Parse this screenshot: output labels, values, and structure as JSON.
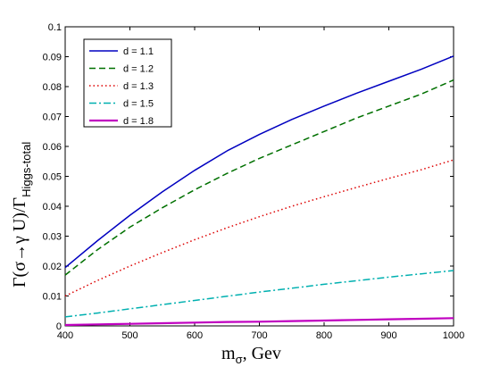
{
  "chart_data": {
    "type": "line",
    "xlabel": "m",
    "xlabel_sub": "σ",
    "xlabel_suffix": ", Gev",
    "ylabel_main": "Γ(σ→γ U)/Γ",
    "ylabel_sub": "Higgs-total",
    "xlim": [
      400,
      1000
    ],
    "ylim": [
      0,
      0.1
    ],
    "x_ticks": [
      "400",
      "500",
      "600",
      "700",
      "800",
      "900",
      "1000"
    ],
    "y_ticks": [
      "0",
      "0.01",
      "0.02",
      "0.03",
      "0.04",
      "0.05",
      "0.06",
      "0.07",
      "0.08",
      "0.09",
      "0.1"
    ],
    "legend_position": "top-left",
    "grid": false,
    "x": [
      400,
      450,
      500,
      550,
      600,
      650,
      700,
      750,
      800,
      850,
      900,
      950,
      1000
    ],
    "series": [
      {
        "name": "d = 1.1",
        "color": "#0000c0",
        "dash": "solid",
        "values": [
          0.0195,
          0.0285,
          0.037,
          0.0448,
          0.052,
          0.0585,
          0.064,
          0.069,
          0.0735,
          0.0778,
          0.0818,
          0.0858,
          0.0902
        ]
      },
      {
        "name": "d = 1.2",
        "color": "#007000",
        "dash": "dashed",
        "values": [
          0.017,
          0.0255,
          0.033,
          0.0395,
          0.0455,
          0.051,
          0.056,
          0.0605,
          0.065,
          0.0695,
          0.0735,
          0.0775,
          0.0822
        ]
      },
      {
        "name": "d = 1.3",
        "color": "#dd0000",
        "dash": "dotted",
        "values": [
          0.01,
          0.0152,
          0.02,
          0.0245,
          0.0288,
          0.0328,
          0.0365,
          0.04,
          0.0432,
          0.0463,
          0.0493,
          0.0522,
          0.0555
        ]
      },
      {
        "name": "d = 1.5",
        "color": "#00b0b0",
        "dash": "dashdot",
        "values": [
          0.003,
          0.0043,
          0.0057,
          0.0071,
          0.0085,
          0.0099,
          0.0113,
          0.0126,
          0.0139,
          0.0151,
          0.0163,
          0.0174,
          0.0185
        ]
      },
      {
        "name": "d = 1.8",
        "color": "#c000c0",
        "dash": "solid",
        "values": [
          0.0003,
          0.0005,
          0.0007,
          0.0009,
          0.0011,
          0.0013,
          0.0014,
          0.0016,
          0.0018,
          0.002,
          0.0022,
          0.0024,
          0.0026
        ]
      }
    ]
  }
}
